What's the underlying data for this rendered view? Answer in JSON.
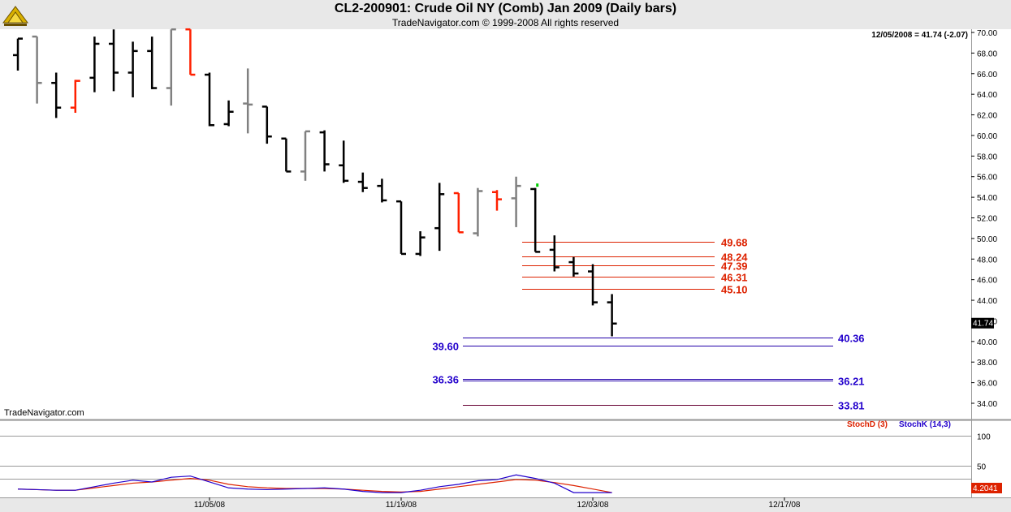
{
  "header": {
    "title": "CL2-200901:  Crude Oil NY (Comb) Jan 2009  (Daily bars)",
    "subtitle": "TradeNavigator.com © 1999-2008 All rights reserved",
    "info": "12/05/2008 = 41.74 (-2.07)",
    "watermark": "TradeNavigator.com",
    "last_price_label": "41.74",
    "stoch_value_label": "4.2041"
  },
  "chart_data": {
    "type": "bar",
    "subtype": "ohlc",
    "title": "CL2-200901:  Crude Oil NY (Comb) Jan 2009  (Daily bars)",
    "ylim": [
      32.5,
      70.5
    ],
    "y_ticks": [
      "70.00",
      "68.00",
      "66.00",
      "64.00",
      "62.00",
      "60.00",
      "58.00",
      "56.00",
      "54.00",
      "52.00",
      "50.00",
      "48.00",
      "46.00",
      "44.00",
      "42.00",
      "40.00",
      "38.00",
      "36.00",
      "34.00"
    ],
    "x_ticks": [
      {
        "label": "11/05/08",
        "bar": 10
      },
      {
        "label": "11/19/08",
        "bar": 20
      },
      {
        "label": "12/03/08",
        "bar": 30
      },
      {
        "label": "12/17/08",
        "bar": 40
      }
    ],
    "bar_colors": {
      "up": "#000000",
      "down": "#000000",
      "neutral": "#808080",
      "highlight": "#ff2000",
      "signal": "#00cc00"
    },
    "bars": [
      {
        "o": 67.8,
        "h": 69.4,
        "l": 66.3,
        "c": 69.4,
        "color": "black"
      },
      {
        "o": 69.6,
        "h": 69.6,
        "l": 63.1,
        "c": 65.1,
        "color": "gray"
      },
      {
        "o": 65.1,
        "h": 66.1,
        "l": 61.7,
        "c": 62.7,
        "color": "black"
      },
      {
        "o": 62.7,
        "h": 65.4,
        "l": 62.2,
        "c": 65.3,
        "color": "red"
      },
      {
        "o": 65.6,
        "h": 69.6,
        "l": 64.2,
        "c": 68.9,
        "color": "black"
      },
      {
        "o": 68.9,
        "h": 70.3,
        "l": 64.3,
        "c": 66.1,
        "color": "black"
      },
      {
        "o": 66.1,
        "h": 69.1,
        "l": 63.7,
        "c": 68.2,
        "color": "black"
      },
      {
        "o": 68.2,
        "h": 69.6,
        "l": 64.5,
        "c": 64.6,
        "color": "black"
      },
      {
        "o": 64.6,
        "h": 70.3,
        "l": 62.9,
        "c": 70.3,
        "color": "gray"
      },
      {
        "o": 70.3,
        "h": 70.3,
        "l": 65.9,
        "c": 65.9,
        "color": "red"
      },
      {
        "o": 65.9,
        "h": 66.1,
        "l": 60.9,
        "c": 61.0,
        "color": "black"
      },
      {
        "o": 61.1,
        "h": 63.4,
        "l": 60.9,
        "c": 62.3,
        "color": "black"
      },
      {
        "o": 63.1,
        "h": 66.5,
        "l": 60.2,
        "c": 63.0,
        "color": "gray"
      },
      {
        "o": 62.8,
        "h": 62.8,
        "l": 59.2,
        "c": 59.9,
        "color": "black"
      },
      {
        "o": 59.7,
        "h": 59.7,
        "l": 56.5,
        "c": 56.5,
        "color": "black"
      },
      {
        "o": 56.5,
        "h": 60.4,
        "l": 55.6,
        "c": 60.4,
        "color": "gray"
      },
      {
        "o": 60.3,
        "h": 60.5,
        "l": 56.5,
        "c": 57.2,
        "color": "black"
      },
      {
        "o": 57.1,
        "h": 59.5,
        "l": 55.4,
        "c": 55.6,
        "color": "black"
      },
      {
        "o": 55.5,
        "h": 56.4,
        "l": 54.5,
        "c": 54.9,
        "color": "black"
      },
      {
        "o": 55.1,
        "h": 55.8,
        "l": 53.5,
        "c": 53.7,
        "color": "black"
      },
      {
        "o": 53.6,
        "h": 53.6,
        "l": 48.5,
        "c": 48.5,
        "color": "black"
      },
      {
        "o": 48.5,
        "h": 50.7,
        "l": 48.3,
        "c": 50.1,
        "color": "black"
      },
      {
        "o": 51.0,
        "h": 55.4,
        "l": 48.8,
        "c": 54.3,
        "color": "black"
      },
      {
        "o": 54.4,
        "h": 54.4,
        "l": 50.6,
        "c": 50.6,
        "color": "red"
      },
      {
        "o": 50.5,
        "h": 54.9,
        "l": 50.2,
        "c": 54.6,
        "color": "gray"
      },
      {
        "o": 54.5,
        "h": 54.7,
        "l": 52.7,
        "c": 53.8,
        "color": "red"
      },
      {
        "o": 53.9,
        "h": 56.0,
        "l": 51.1,
        "c": 55.1,
        "color": "gray"
      },
      {
        "o": 54.8,
        "h": 54.9,
        "l": 48.7,
        "c": 48.7,
        "color": "black"
      },
      {
        "o": 48.9,
        "h": 50.3,
        "l": 46.8,
        "c": 47.2,
        "color": "black"
      },
      {
        "o": 47.7,
        "h": 48.2,
        "l": 46.3,
        "c": 46.6,
        "color": "black"
      },
      {
        "o": 46.8,
        "h": 47.5,
        "l": 43.5,
        "c": 43.8,
        "color": "black"
      },
      {
        "o": 43.8,
        "h": 44.6,
        "l": 40.5,
        "c": 41.74,
        "color": "black"
      }
    ],
    "levels_red": [
      "49.68",
      "48.24",
      "47.39",
      "46.31",
      "45.10"
    ],
    "levels_blue": [
      {
        "value": 40.36,
        "label": "40.36",
        "side": "right"
      },
      {
        "value": 39.6,
        "label": "39.60",
        "side": "left"
      },
      {
        "value": 36.36,
        "label": "36.36",
        "side": "left"
      },
      {
        "value": 36.21,
        "label": "36.21",
        "side": "right"
      },
      {
        "value": 33.81,
        "label": "33.81",
        "side": "right"
      }
    ],
    "stochastic": {
      "ylim": [
        0,
        125
      ],
      "y_ticks": [
        "100",
        "50"
      ],
      "legend": [
        {
          "label": "StochD (3)",
          "color": "#dd2200"
        },
        {
          "label": "StochK (14,3)",
          "color": "#2200cc"
        }
      ],
      "stochD": [
        10,
        9,
        8,
        8,
        12,
        16,
        20,
        22,
        25,
        28,
        25,
        18,
        14,
        12,
        11,
        11,
        11,
        10,
        8,
        6,
        5,
        6,
        10,
        14,
        18,
        22,
        26,
        25,
        21,
        16,
        10,
        4
      ],
      "stochK": [
        10,
        9,
        8,
        8,
        14,
        20,
        25,
        22,
        30,
        32,
        22,
        12,
        10,
        9,
        10,
        11,
        12,
        10,
        6,
        4,
        4,
        8,
        14,
        18,
        24,
        26,
        34,
        28,
        20,
        4,
        4,
        4
      ]
    }
  }
}
